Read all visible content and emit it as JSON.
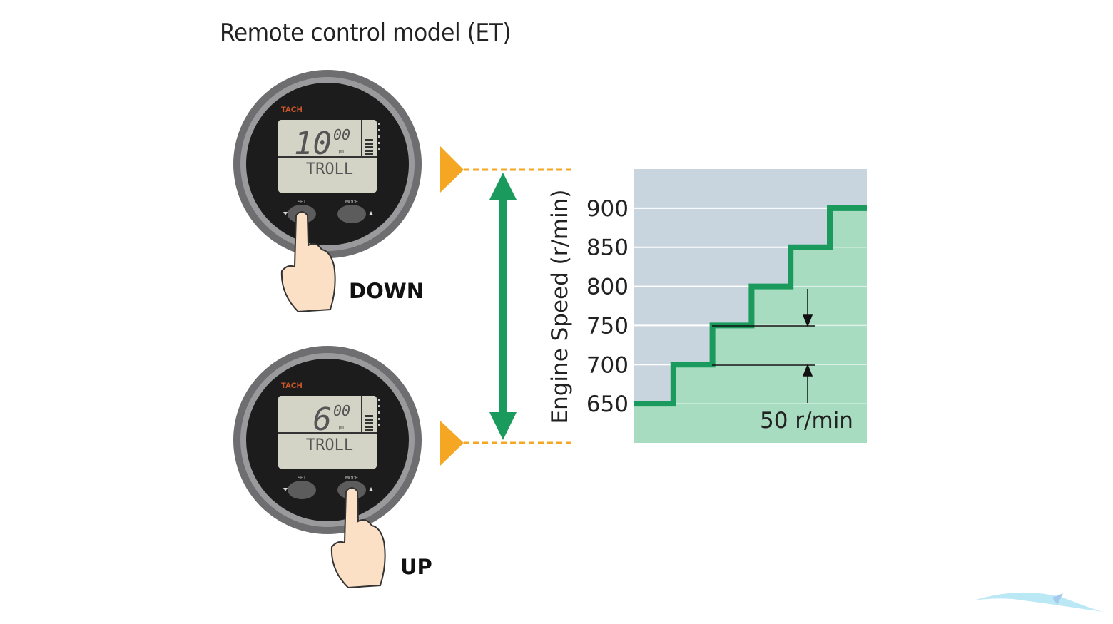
{
  "title": "Remote control model (ET)",
  "gauges": [
    {
      "brand": "TACH",
      "reading_main": "10",
      "reading_sub": "00",
      "unit": "rpm",
      "mode": "TROLL",
      "left_button": "SET",
      "right_button": "MODE",
      "pressed": "SET",
      "action_label": "DOWN"
    },
    {
      "brand": "TACH",
      "reading_main": "6",
      "reading_sub": "00",
      "unit": "rpm",
      "mode": "TROLL",
      "left_button": "SET",
      "right_button": "MODE",
      "pressed": "MODE",
      "action_label": "UP"
    }
  ],
  "colors": {
    "marker": "#f5a623",
    "arrow": "#1a9a5c",
    "chart_bg": "#c9d5de",
    "chart_fill": "#a8dcc0",
    "step_line": "#1a9a5c"
  },
  "chart_data": {
    "type": "line",
    "ylabel": "Engine Speed (r/min)",
    "yticks": [
      650,
      700,
      750,
      800,
      850,
      900
    ],
    "ylim": [
      600,
      950
    ],
    "steps": [
      650,
      700,
      750,
      800,
      850,
      900
    ],
    "grid": true,
    "annotation": "50 r/min"
  }
}
